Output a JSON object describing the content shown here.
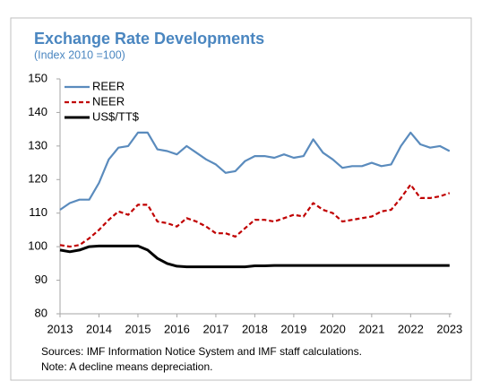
{
  "chart_data": {
    "type": "line",
    "title": "Exchange Rate Developments",
    "subtitle": "(Index 2010 =100)",
    "notes": [
      "Sources: IMF Information Notice System and IMF staff calculations.",
      "Note: A decline means depreciation."
    ],
    "x": [
      2013,
      2013.25,
      2013.5,
      2013.75,
      2014,
      2014.25,
      2014.5,
      2014.75,
      2015,
      2015.25,
      2015.5,
      2015.75,
      2016,
      2016.25,
      2016.5,
      2016.75,
      2017,
      2017.25,
      2017.5,
      2017.75,
      2018,
      2018.25,
      2018.5,
      2018.75,
      2019,
      2019.25,
      2019.5,
      2019.75,
      2020,
      2020.25,
      2020.5,
      2020.75,
      2021,
      2021.25,
      2021.5,
      2021.75,
      2022,
      2022.25,
      2022.5,
      2022.75,
      2023
    ],
    "series": [
      {
        "name": "REER",
        "color": "#5a8bbd",
        "dash": false,
        "width": 2.2,
        "values": [
          111,
          113,
          114,
          114,
          119,
          126,
          129.5,
          130,
          134,
          134,
          129,
          128.5,
          127.5,
          130,
          128,
          126,
          124.5,
          122,
          122.5,
          125.5,
          127,
          127,
          126.5,
          127.5,
          126.5,
          127,
          132,
          128,
          126,
          123.5,
          124,
          124,
          125,
          124,
          124.5,
          130,
          134,
          130.5,
          129.5,
          130,
          128.5
        ]
      },
      {
        "name": "NEER",
        "color": "#c00000",
        "dash": true,
        "width": 2.2,
        "values": [
          100.5,
          100,
          100.5,
          102.5,
          105,
          108,
          110.5,
          109.5,
          112.5,
          112.5,
          107.5,
          107,
          106,
          108.5,
          107.5,
          106,
          104,
          104,
          103,
          105.5,
          108,
          108,
          107.5,
          108.5,
          109.5,
          109,
          113,
          111,
          110,
          107.5,
          108,
          108.5,
          109,
          110.5,
          111,
          114.5,
          118.5,
          114.5,
          114.5,
          115,
          116
        ]
      },
      {
        "name": "US$/TT$",
        "color": "#000000",
        "dash": false,
        "width": 3,
        "values": [
          99,
          98.5,
          99,
          100,
          100.2,
          100.2,
          100.2,
          100.2,
          100.2,
          99,
          96.5,
          95,
          94.2,
          94,
          94,
          94,
          94,
          94,
          94,
          94,
          94.3,
          94.3,
          94.4,
          94.4,
          94.4,
          94.4,
          94.4,
          94.4,
          94.4,
          94.4,
          94.4,
          94.4,
          94.4,
          94.4,
          94.4,
          94.4,
          94.4,
          94.4,
          94.4,
          94.4,
          94.4
        ]
      }
    ],
    "xlim": [
      2013,
      2023.05
    ],
    "xticks": [
      2013,
      2014,
      2015,
      2016,
      2017,
      2018,
      2019,
      2020,
      2021,
      2022,
      2023
    ],
    "ylim": [
      80,
      150
    ],
    "yticks": [
      80,
      90,
      100,
      110,
      120,
      130,
      140,
      150
    ],
    "legend": "top-left",
    "grid": false
  }
}
